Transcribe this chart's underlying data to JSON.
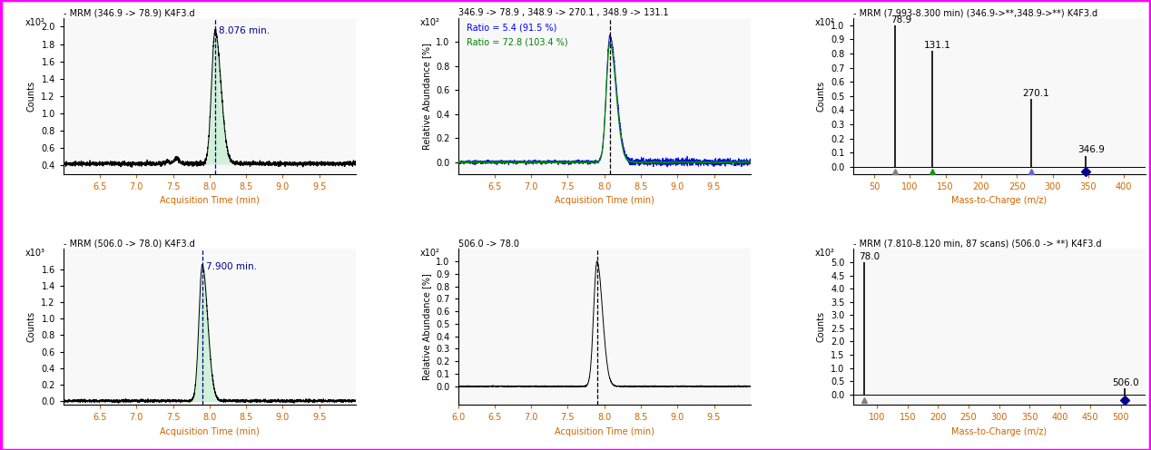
{
  "fig_width": 12.68,
  "fig_height": 4.96,
  "background_color": "#ffffff",
  "top_left": {
    "title": "- MRM (346.9 -> 78.9) K4F3.d",
    "ylabel": "Counts",
    "ylabel2": "x10²",
    "xlabel": "Acquisition Time (min)",
    "peak_time": 8.076,
    "peak_label": "8.076 min.",
    "xmin": 6.0,
    "xmax": 10.0,
    "ymin": 0.3,
    "ymax": 2.1,
    "yticks": [
      0.4,
      0.6,
      0.8,
      1.0,
      1.2,
      1.4,
      1.6,
      1.8,
      2.0
    ],
    "xticks": [
      6.5,
      7.0,
      7.5,
      8.0,
      8.5,
      9.0,
      9.5
    ],
    "baseline": 0.42,
    "noise_amp": 0.012,
    "peak_height": 1.95,
    "fill_color": "#d0f0d8",
    "line_color": "#000000",
    "dashed_color": "#00008b"
  },
  "top_mid": {
    "title": "346.9 -> 78.9 , 348.9 -> 270.1 , 348.9 -> 131.1",
    "ylabel": "Relative Abundance [%]",
    "ylabel2": "x10²",
    "xlabel": "Acquisition Time (min)",
    "peak_time": 8.076,
    "xmin": 6.0,
    "xmax": 10.0,
    "ymin": -0.1,
    "ymax": 1.2,
    "yticks": [
      0.0,
      0.2,
      0.4,
      0.6,
      0.8,
      1.0
    ],
    "xticks": [
      6.5,
      7.0,
      7.5,
      8.0,
      8.5,
      9.0,
      9.5
    ],
    "peak_height": 1.05,
    "ratio1_text": "Ratio = 5.4 (91.5 %)",
    "ratio2_text": "Ratio = 72.8 (103.4 %)",
    "ratio1_color": "#0000ff",
    "ratio2_color": "#008000",
    "line1_color": "#0000ff",
    "line2_color": "#008000",
    "dashed_color": "#000000"
  },
  "top_right": {
    "title": "- MRM (7.993-8.300 min) (346.9->**,348.9->**) K4F3.d",
    "ylabel": "Counts",
    "ylabel2": "x10²",
    "xlabel": "Mass-to-Charge (m/z)",
    "xmin": 20,
    "xmax": 430,
    "ymin": -0.05,
    "ymax": 1.05,
    "yticks": [
      0.0,
      0.1,
      0.2,
      0.3,
      0.4,
      0.5,
      0.6,
      0.7,
      0.8,
      0.9,
      1.0
    ],
    "xticks": [
      50,
      100,
      150,
      200,
      250,
      300,
      350,
      400
    ],
    "peaks": [
      {
        "mz": 78.9,
        "intensity": 1.0,
        "label": "78.9",
        "marker_color": "#808080",
        "marker": "^"
      },
      {
        "mz": 131.1,
        "intensity": 0.82,
        "label": "131.1",
        "marker_color": "#228B22",
        "marker": "^"
      },
      {
        "mz": 270.1,
        "intensity": 0.48,
        "label": "270.1",
        "marker_color": "#6666cc",
        "marker": "^"
      },
      {
        "mz": 346.9,
        "intensity": 0.08,
        "label": "346.9",
        "marker_color": "#00008b",
        "marker": "D"
      }
    ]
  },
  "bot_left": {
    "title": "- MRM (506.0 -> 78.0) K4F3.d",
    "ylabel": "Counts",
    "ylabel2": "x10³",
    "xlabel": "Acquisition Time (min)",
    "peak_time": 7.9,
    "peak_label": "7.900 min.",
    "xmin": 6.0,
    "xmax": 10.0,
    "ymin": -0.05,
    "ymax": 1.85,
    "yticks": [
      0.0,
      0.2,
      0.4,
      0.6,
      0.8,
      1.0,
      1.2,
      1.4,
      1.6
    ],
    "xticks": [
      6.5,
      7.0,
      7.5,
      8.0,
      8.5,
      9.0,
      9.5
    ],
    "noise_amp": 0.008,
    "peak_height": 1.65,
    "fill_color": "#d0f0d8",
    "line_color": "#000000",
    "dashed_color": "#00008b"
  },
  "bot_mid": {
    "title": "506.0 -> 78.0",
    "ylabel": "Relative Abundance [%]",
    "ylabel2": "x10²",
    "xlabel": "Acquisition Time (min)",
    "peak_time": 7.9,
    "xmin": 6.0,
    "xmax": 10.0,
    "ymin": -0.15,
    "ymax": 1.1,
    "yticks": [
      0.0,
      0.1,
      0.2,
      0.3,
      0.4,
      0.5,
      0.6,
      0.7,
      0.8,
      0.9,
      1.0
    ],
    "xticks": [
      6.0,
      6.5,
      7.0,
      7.5,
      8.0,
      8.5,
      9.0,
      9.5
    ],
    "peak_height": 1.0,
    "line_color": "#000000",
    "dashed_color": "#000000"
  },
  "bot_right": {
    "title": "- MRM (7.810-8.120 min, 87 scans) (506.0 -> **) K4F3.d",
    "ylabel": "Counts",
    "ylabel2": "x10²",
    "xlabel": "Mass-to-Charge (m/z)",
    "xmin": 60,
    "xmax": 540,
    "ymin": -0.4,
    "ymax": 5.5,
    "yticks": [
      0.0,
      0.5,
      1.0,
      1.5,
      2.0,
      2.5,
      3.0,
      3.5,
      4.0,
      4.5,
      5.0
    ],
    "xticks": [
      100,
      150,
      200,
      250,
      300,
      350,
      400,
      450,
      500
    ],
    "peaks": [
      {
        "mz": 78.0,
        "intensity": 5.0,
        "label": "78.0",
        "marker_color": "#808080",
        "marker": "^"
      },
      {
        "mz": 506.0,
        "intensity": 0.22,
        "label": "506.0",
        "marker_color": "#00008b",
        "marker": "D"
      }
    ]
  }
}
